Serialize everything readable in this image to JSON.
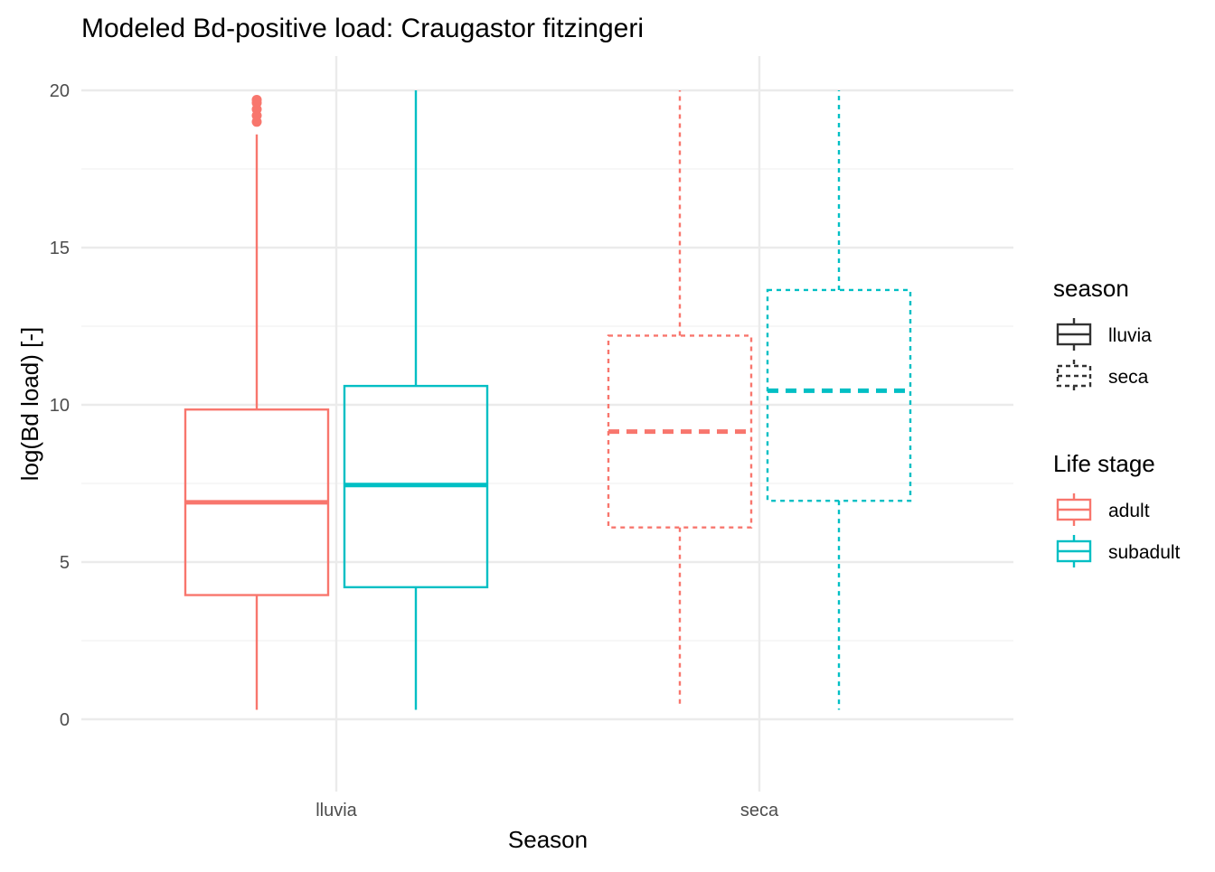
{
  "chart_data": {
    "type": "box",
    "title": "Modeled Bd-positive load: Craugastor fitzingeri",
    "xlabel": "Season",
    "ylabel": "log(Bd load) [-]",
    "ylim": [
      -2.3,
      21.0
    ],
    "y_ticks": [
      0,
      5,
      10,
      15,
      20
    ],
    "grid": true,
    "legend_position": "right",
    "categories": [
      "lluvia",
      "seca"
    ],
    "legends": {
      "season": {
        "title": "season",
        "entries": [
          {
            "label": "lluvia",
            "linetype": "solid"
          },
          {
            "label": "seca",
            "linetype": "dashed"
          }
        ]
      },
      "life_stage": {
        "title": "Life stage",
        "entries": [
          {
            "label": "adult",
            "color": "#F8766D"
          },
          {
            "label": "subadult",
            "color": "#00BFC4"
          }
        ]
      }
    },
    "series": [
      {
        "name": "adult",
        "color": "#F8766D",
        "boxes": [
          {
            "category": "lluvia",
            "linetype": "solid",
            "whisker_low": 0.3,
            "q1": 3.95,
            "median": 6.9,
            "q3": 9.85,
            "whisker_high": 18.6,
            "outliers": [
              19.0,
              19.2,
              19.4,
              19.6,
              19.7
            ]
          },
          {
            "category": "seca",
            "linetype": "dashed",
            "whisker_low": 0.4,
            "q1": 6.1,
            "median": 9.15,
            "q3": 12.2,
            "whisker_high": 20.0,
            "outliers": []
          }
        ]
      },
      {
        "name": "subadult",
        "color": "#00BFC4",
        "boxes": [
          {
            "category": "lluvia",
            "linetype": "solid",
            "whisker_low": 0.3,
            "q1": 4.2,
            "median": 7.45,
            "q3": 10.6,
            "whisker_high": 20.0,
            "outliers": []
          },
          {
            "category": "seca",
            "linetype": "dashed",
            "whisker_low": 0.3,
            "q1": 6.95,
            "median": 10.45,
            "q3": 13.65,
            "whisker_high": 20.0,
            "outliers": []
          }
        ]
      }
    ]
  }
}
